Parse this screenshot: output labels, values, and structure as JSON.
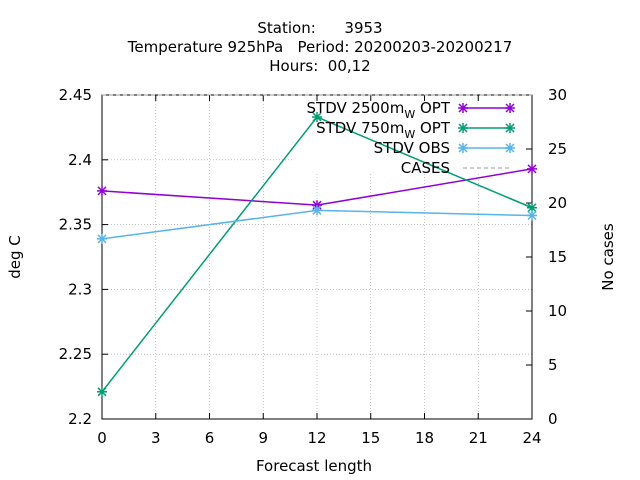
{
  "chart_data": {
    "type": "line",
    "title_lines": [
      "Station:      3953",
      "Temperature 925hPa   Period: 20200203-20200217",
      "Hours:  00,12"
    ],
    "xlabel": "Forecast length",
    "ylabel": "deg C",
    "y2label": "No cases",
    "x_ticks": [
      0,
      3,
      6,
      9,
      12,
      15,
      18,
      21,
      24
    ],
    "y_ticks": [
      "2.2",
      "2.25",
      "2.3",
      "2.35",
      "2.4",
      "2.45"
    ],
    "y2_ticks": [
      0,
      5,
      10,
      15,
      20,
      25,
      30
    ],
    "xlim": [
      0,
      24
    ],
    "ylim": [
      2.2,
      2.45
    ],
    "y2lim": [
      0,
      30
    ],
    "grid": "dashed",
    "legend_position": "top-right",
    "series": [
      {
        "name_main": "STDV 2500m",
        "name_sub": "W",
        "name_tail": " OPT",
        "color": "#9400d3",
        "marker": "x",
        "axis": "y",
        "x": [
          0,
          12,
          24
        ],
        "values": [
          2.376,
          2.365,
          2.393
        ]
      },
      {
        "name_main": "STDV 750m",
        "name_sub": "W",
        "name_tail": " OPT",
        "color": "#009e73",
        "marker": "x",
        "axis": "y",
        "x": [
          0,
          12,
          24
        ],
        "values": [
          2.221,
          2.433,
          2.363
        ]
      },
      {
        "name_main": "STDV OBS",
        "name_sub": "",
        "name_tail": "",
        "color": "#56b4e9",
        "marker": "x",
        "axis": "y",
        "x": [
          0,
          12,
          24
        ],
        "values": [
          2.339,
          2.361,
          2.357
        ]
      },
      {
        "name_main": "CASES",
        "name_sub": "",
        "name_tail": "",
        "color": "#999999",
        "marker": "none",
        "dashed": true,
        "axis": "y2",
        "x": [
          0,
          12,
          24
        ],
        "values": [
          30,
          30,
          30
        ]
      }
    ]
  }
}
